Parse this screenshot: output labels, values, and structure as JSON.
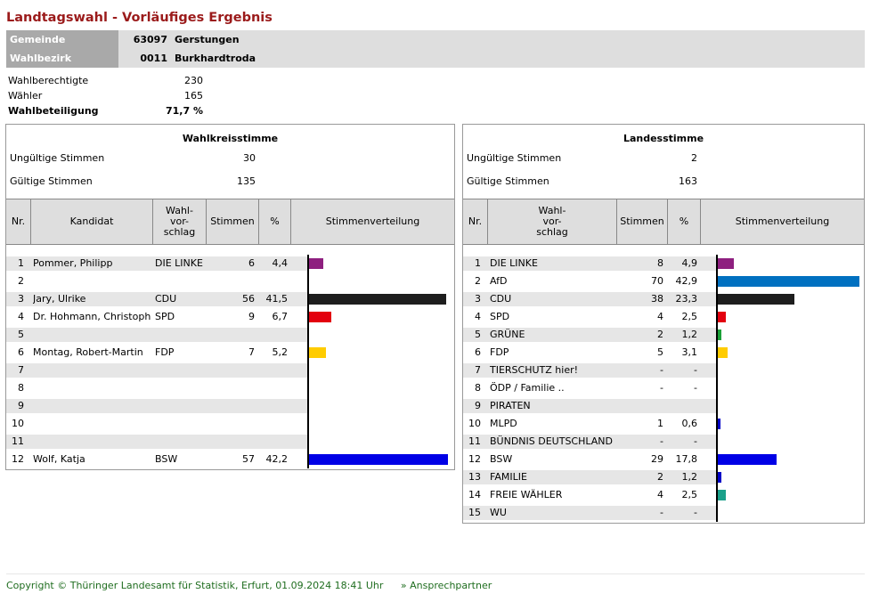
{
  "title": "Landtagswahl - Vorläufiges Ergebnis",
  "header": {
    "gemeinde_label": "Gemeinde",
    "gemeinde_nr": "63097",
    "gemeinde_name": "Gerstungen",
    "wahlbezirk_label": "Wahlbezirk",
    "wahlbezirk_nr": "0011",
    "wahlbezirk_name": "Burkhardtroda"
  },
  "summary": {
    "wahlberechtigte_label": "Wahlberechtigte",
    "wahlberechtigte": "230",
    "waehler_label": "Wähler",
    "waehler": "165",
    "beteiligung_label": "Wahlbeteiligung",
    "beteiligung": "71,7 %"
  },
  "wahlkreis": {
    "title": "Wahlkreisstimme",
    "ungueltig_label": "Ungültige Stimmen",
    "ungueltig": "30",
    "gueltig_label": "Gültige Stimmen",
    "gueltig": "135",
    "headers": {
      "nr": "Nr.",
      "kandidat": "Kandidat",
      "vorschlag": "Wahl- vor- schlag",
      "stimmen": "Stimmen",
      "pct": "%",
      "verteilung": "Stimmenverteilung"
    },
    "rows": [
      {
        "nr": "1",
        "kandidat": "Pommer, Philipp",
        "vorschlag": "DIE LINKE",
        "stimmen": "6",
        "pct": "4,4",
        "value": 4.4,
        "color": "#8e1f7f"
      },
      {
        "nr": "2",
        "kandidat": "",
        "vorschlag": "",
        "stimmen": "",
        "pct": "",
        "value": 0,
        "color": ""
      },
      {
        "nr": "3",
        "kandidat": "Jary, Ulrike",
        "vorschlag": "CDU",
        "stimmen": "56",
        "pct": "41,5",
        "value": 41.5,
        "color": "#1e1e1e"
      },
      {
        "nr": "4",
        "kandidat": "Dr. Hohmann, Christoph",
        "vorschlag": "SPD",
        "stimmen": "9",
        "pct": "6,7",
        "value": 6.7,
        "color": "#e3000f"
      },
      {
        "nr": "5",
        "kandidat": "",
        "vorschlag": "",
        "stimmen": "",
        "pct": "",
        "value": 0,
        "color": ""
      },
      {
        "nr": "6",
        "kandidat": "Montag, Robert-Martin",
        "vorschlag": "FDP",
        "stimmen": "7",
        "pct": "5,2",
        "value": 5.2,
        "color": "#ffcc00"
      },
      {
        "nr": "7",
        "kandidat": "",
        "vorschlag": "",
        "stimmen": "",
        "pct": "",
        "value": 0,
        "color": ""
      },
      {
        "nr": "8",
        "kandidat": "",
        "vorschlag": "",
        "stimmen": "",
        "pct": "",
        "value": 0,
        "color": ""
      },
      {
        "nr": "9",
        "kandidat": "",
        "vorschlag": "",
        "stimmen": "",
        "pct": "",
        "value": 0,
        "color": ""
      },
      {
        "nr": "10",
        "kandidat": "",
        "vorschlag": "",
        "stimmen": "",
        "pct": "",
        "value": 0,
        "color": ""
      },
      {
        "nr": "11",
        "kandidat": "",
        "vorschlag": "",
        "stimmen": "",
        "pct": "",
        "value": 0,
        "color": ""
      },
      {
        "nr": "12",
        "kandidat": "Wolf, Katja",
        "vorschlag": "BSW",
        "stimmen": "57",
        "pct": "42,2",
        "value": 42.2,
        "color": "#0000e6"
      }
    ]
  },
  "landes": {
    "title": "Landesstimme",
    "ungueltig_label": "Ungültige Stimmen",
    "ungueltig": "2",
    "gueltig_label": "Gültige Stimmen",
    "gueltig": "163",
    "headers": {
      "nr": "Nr.",
      "vorschlag": "Wahl- vor- schlag",
      "stimmen": "Stimmen",
      "pct": "%",
      "verteilung": "Stimmenverteilung"
    },
    "rows": [
      {
        "nr": "1",
        "vorschlag": "DIE LINKE",
        "stimmen": "8",
        "pct": "4,9",
        "value": 4.9,
        "color": "#8e1f7f"
      },
      {
        "nr": "2",
        "vorschlag": "AfD",
        "stimmen": "70",
        "pct": "42,9",
        "value": 42.9,
        "color": "#0070c0"
      },
      {
        "nr": "3",
        "vorschlag": "CDU",
        "stimmen": "38",
        "pct": "23,3",
        "value": 23.3,
        "color": "#1e1e1e"
      },
      {
        "nr": "4",
        "vorschlag": "SPD",
        "stimmen": "4",
        "pct": "2,5",
        "value": 2.5,
        "color": "#e3000f"
      },
      {
        "nr": "5",
        "vorschlag": "GRÜNE",
        "stimmen": "2",
        "pct": "1,2",
        "value": 1.2,
        "color": "#1aa037"
      },
      {
        "nr": "6",
        "vorschlag": "FDP",
        "stimmen": "5",
        "pct": "3,1",
        "value": 3.1,
        "color": "#ffcc00"
      },
      {
        "nr": "7",
        "vorschlag": "TIERSCHUTZ hier!",
        "stimmen": "-",
        "pct": "-",
        "value": 0,
        "color": ""
      },
      {
        "nr": "8",
        "vorschlag": "ÖDP / Familie ..",
        "stimmen": "-",
        "pct": "-",
        "value": 0,
        "color": ""
      },
      {
        "nr": "9",
        "vorschlag": "PIRATEN",
        "stimmen": "",
        "pct": "",
        "value": 0,
        "color": ""
      },
      {
        "nr": "10",
        "vorschlag": "MLPD",
        "stimmen": "1",
        "pct": "0,6",
        "value": 0.6,
        "color": "#0000c8"
      },
      {
        "nr": "11",
        "vorschlag": "BÜNDNIS DEUTSCHLAND",
        "stimmen": "-",
        "pct": "-",
        "value": 0,
        "color": ""
      },
      {
        "nr": "12",
        "vorschlag": "BSW",
        "stimmen": "29",
        "pct": "17,8",
        "value": 17.8,
        "color": "#0000e6"
      },
      {
        "nr": "13",
        "vorschlag": "FAMILIE",
        "stimmen": "2",
        "pct": "1,2",
        "value": 1.2,
        "color": "#0000c8"
      },
      {
        "nr": "14",
        "vorschlag": "FREIE WÄHLER",
        "stimmen": "4",
        "pct": "2,5",
        "value": 2.5,
        "color": "#1aa08a"
      },
      {
        "nr": "15",
        "vorschlag": "WU",
        "stimmen": "-",
        "pct": "-",
        "value": 0,
        "color": ""
      }
    ]
  },
  "footer": {
    "copyright": "Copyright © Thüringer Landesamt für Statistik, Erfurt, 01.09.2024 18:41 Uhr",
    "link": "» Ansprechpartner"
  }
}
